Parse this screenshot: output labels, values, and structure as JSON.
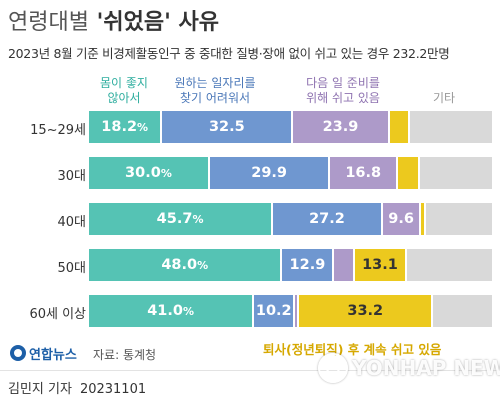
{
  "title": {
    "lead": "연령대별",
    "emph": "'쉬었음'",
    "tail": " 사유"
  },
  "subtitle": "2023년 8월 기준 비경제활동인구 중 중대한 질병·장애 없이 쉬고 있는 경우 232.2만명",
  "legend": [
    {
      "line1": "몸이 좋지",
      "line2": "않아서"
    },
    {
      "line1": "원하는 일자리를",
      "line2": "찾기 어려워서"
    },
    {
      "line1": "다음 일 준비를",
      "line2": "위해 쉬고 있음"
    },
    {
      "line1": "기타",
      "line2": ""
    }
  ],
  "chart_data": {
    "type": "bar",
    "orientation": "horizontal",
    "stacked": true,
    "categories": [
      "15~29세",
      "30대",
      "40대",
      "50대",
      "60세 이상"
    ],
    "unit": "%",
    "series": [
      {
        "name": "몸이 좋지 않아서",
        "color": "#55c3b4",
        "values": [
          18.2,
          30.0,
          45.7,
          48.0,
          41.0
        ]
      },
      {
        "name": "원하는 일자리를 찾기 어려워서",
        "color": "#6f97d0",
        "values": [
          32.5,
          29.9,
          27.2,
          12.9,
          10.2
        ]
      },
      {
        "name": "다음 일 준비를 위해 쉬고 있음",
        "color": "#ad9ac9",
        "values": [
          23.9,
          16.8,
          9.6,
          5.0,
          1.0
        ]
      },
      {
        "name": "퇴사(정년퇴직) 후 계속 쉬고 있음",
        "color": "#ecc91e",
        "values": [
          5.0,
          5.5,
          1.2,
          13.1,
          33.2
        ]
      },
      {
        "name": "기타",
        "color": "#d9d9d9",
        "values": [
          20.4,
          17.8,
          16.3,
          21.0,
          14.6
        ]
      }
    ],
    "data_labels": [
      [
        "18.2%",
        "32.5",
        "23.9",
        "",
        ""
      ],
      [
        "30.0%",
        "29.9",
        "16.8",
        "",
        ""
      ],
      [
        "45.7%",
        "27.2",
        "9.6",
        "",
        ""
      ],
      [
        "48.0%",
        "12.9",
        "",
        "13.1",
        ""
      ],
      [
        "41.0%",
        "10.2",
        "",
        "33.2",
        ""
      ]
    ],
    "xlim": [
      0,
      100
    ]
  },
  "annotation": "퇴사(정년퇴직) 후 계속 쉬고 있음",
  "logo": "연합뉴스",
  "source": "자료: 통계청",
  "author": "김민지 기자",
  "date": "20231101",
  "watermark": "YONHAP NEWS"
}
